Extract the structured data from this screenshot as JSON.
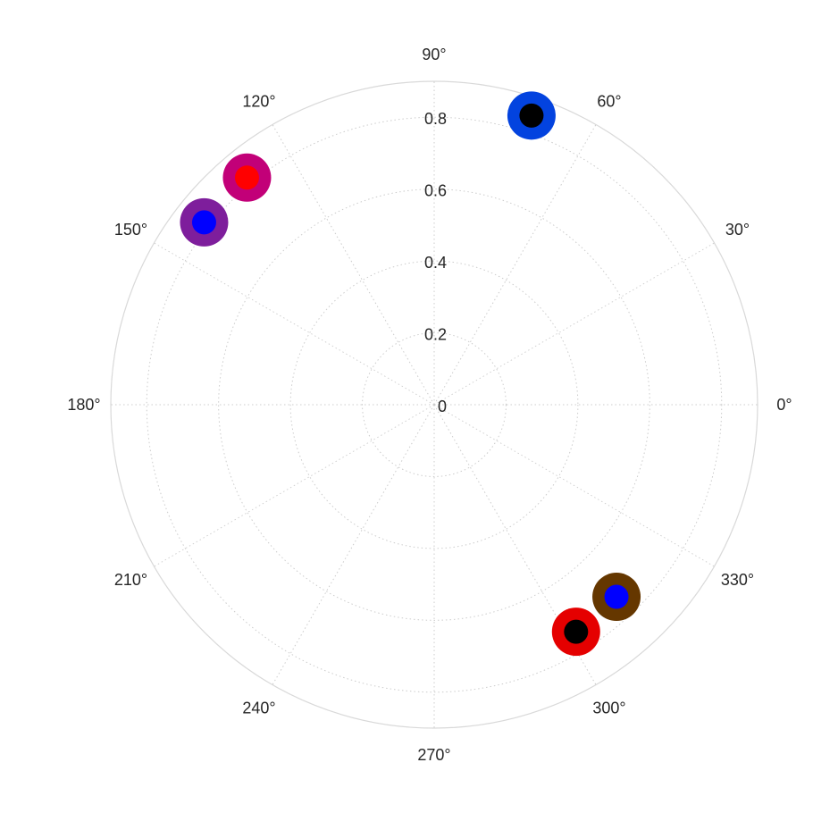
{
  "chart_data": {
    "type": "scatter",
    "projection": "polar",
    "theta_unit": "degrees",
    "rlim": [
      0,
      0.9
    ],
    "r_ticks": [
      0,
      0.2,
      0.4,
      0.6,
      0.8
    ],
    "r_tick_labels": [
      "0",
      "0.2",
      "0.4",
      "0.6",
      "0.8"
    ],
    "theta_ticks": [
      0,
      30,
      60,
      90,
      120,
      150,
      180,
      210,
      240,
      270,
      300,
      330
    ],
    "theta_tick_labels": [
      "0°",
      "30°",
      "60°",
      "90°",
      "120°",
      "150°",
      "180°",
      "210°",
      "240°",
      "270°",
      "300°",
      "330°"
    ],
    "grid": true,
    "points": [
      {
        "theta": 71.4,
        "r": 0.849,
        "outer_color": "#0343df",
        "inner_color": "#000000"
      },
      {
        "theta": 129.5,
        "r": 0.819,
        "outer_color": "#c20078",
        "inner_color": "#ff0000"
      },
      {
        "theta": 141.6,
        "r": 0.817,
        "outer_color": "#7e1e9c",
        "inner_color": "#0000ff"
      },
      {
        "theta": 313.5,
        "r": 0.737,
        "outer_color": "#653700",
        "inner_color": "#0000ff"
      },
      {
        "theta": 302.0,
        "r": 0.745,
        "outer_color": "#e50000",
        "inner_color": "#000000"
      }
    ]
  }
}
